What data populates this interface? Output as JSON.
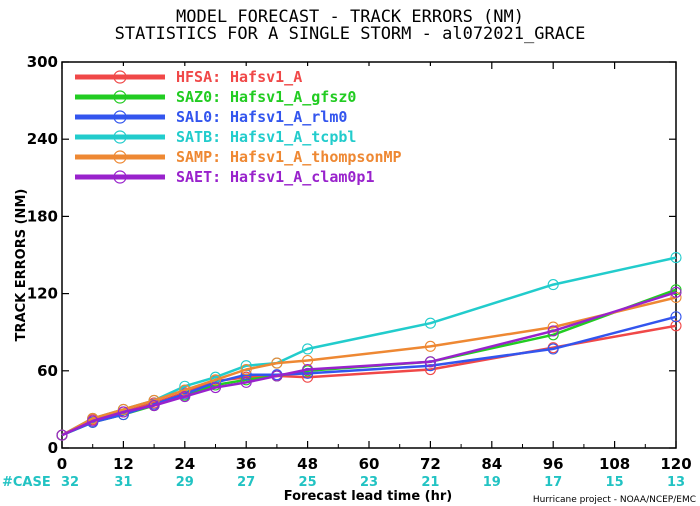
{
  "chart_data": {
    "type": "line",
    "title": "MODEL FORECAST - TRACK ERRORS (NM)",
    "subtitle": "STATISTICS FOR A SINGLE STORM - al072021_GRACE",
    "xlabel": "Forecast lead time (hr)",
    "ylabel": "TRACK ERRORS (NM)",
    "xlim": [
      0,
      120
    ],
    "ylim": [
      0,
      300
    ],
    "xticks": [
      0,
      12,
      24,
      36,
      48,
      60,
      72,
      84,
      96,
      108,
      120
    ],
    "yticks": [
      0,
      60,
      120,
      180,
      240,
      300
    ],
    "x": [
      0,
      6,
      12,
      18,
      24,
      30,
      36,
      42,
      48,
      72,
      96,
      120
    ],
    "series": [
      {
        "name": "HFSA:",
        "desc": "Hafsv1_A",
        "color": "#f04848",
        "values": [
          10,
          22,
          28,
          35,
          43,
          52,
          55,
          56,
          55,
          61,
          78,
          95
        ]
      },
      {
        "name": "SAZ0:",
        "desc": "Hafsv1_A_gfsz0",
        "color": "#22cc22",
        "values": [
          10,
          20,
          26,
          33,
          41,
          49,
          53,
          56,
          60,
          67,
          88,
          123
        ]
      },
      {
        "name": "SAL0:",
        "desc": "Hafsv1_A_rlm0",
        "color": "#3355ee",
        "values": [
          10,
          20,
          26,
          34,
          42,
          51,
          57,
          57,
          58,
          64,
          77,
          102
        ]
      },
      {
        "name": "SATB:",
        "desc": "Hafsv1_A_tcpbl",
        "color": "#22cccc",
        "values": [
          10,
          23,
          30,
          37,
          48,
          55,
          64,
          66,
          77,
          97,
          127,
          148
        ]
      },
      {
        "name": "SAMP:",
        "desc": "Hafsv1_A_thompsonMP",
        "color": "#ee8833",
        "values": [
          10,
          23,
          30,
          37,
          45,
          53,
          61,
          66,
          68,
          79,
          94,
          117
        ]
      },
      {
        "name": "SAET:",
        "desc": "Hafsv1_A_clam0p1",
        "color": "#9922cc",
        "values": [
          10,
          21,
          28,
          33,
          40,
          47,
          51,
          56,
          61,
          67,
          91,
          121
        ]
      }
    ],
    "cases": {
      "label": "#CASE",
      "x": [
        0,
        12,
        24,
        36,
        48,
        60,
        72,
        84,
        96,
        108,
        120
      ],
      "values": [
        "32",
        "31",
        "29",
        "27",
        "25",
        "23",
        "21",
        "19",
        "17",
        "15",
        "13"
      ]
    },
    "grid": false,
    "legend_position": "top-left"
  },
  "credit": "Hurricane project - NOAA/NCEP/EMC"
}
